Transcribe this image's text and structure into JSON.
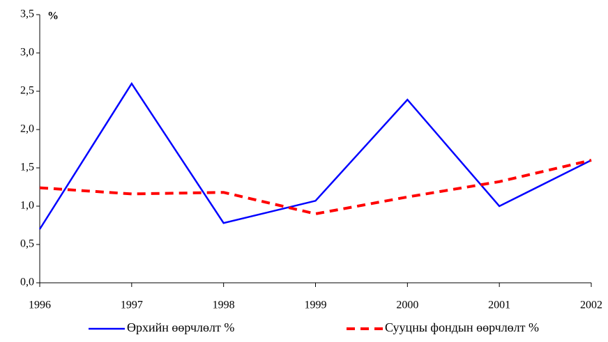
{
  "chart_data": {
    "type": "line",
    "y_label": "%",
    "x": [
      1996,
      1997,
      1998,
      1999,
      2000,
      2001,
      2002
    ],
    "xlim": [
      1996,
      2002
    ],
    "xticks": [
      1996,
      1997,
      1998,
      1999,
      2000,
      2001,
      2002
    ],
    "ylim": [
      0,
      3.5
    ],
    "yticks": [
      {
        "value": 0,
        "label": "0,0"
      },
      {
        "value": 0.5,
        "label": "0,5"
      },
      {
        "value": 1,
        "label": "1,0"
      },
      {
        "value": 1.5,
        "label": "1,5"
      },
      {
        "value": 2,
        "label": "2,0"
      },
      {
        "value": 2.5,
        "label": "2,5"
      },
      {
        "value": 3,
        "label": "3,0"
      },
      {
        "value": 3.5,
        "label": "3,5"
      }
    ],
    "grid": false,
    "legend": "bottom",
    "series": [
      {
        "name": "Өрхийн өөрчлөлт %",
        "color": "#0000ff",
        "dashed": false,
        "values": [
          0.7,
          2.6,
          0.78,
          1.07,
          2.39,
          1.0,
          1.6
        ]
      },
      {
        "name": "Сууцны фондын өөрчлөлт %",
        "color": "#ff0000",
        "dashed": true,
        "values": [
          1.24,
          1.16,
          1.18,
          0.9,
          1.12,
          1.32,
          1.6
        ]
      }
    ]
  }
}
